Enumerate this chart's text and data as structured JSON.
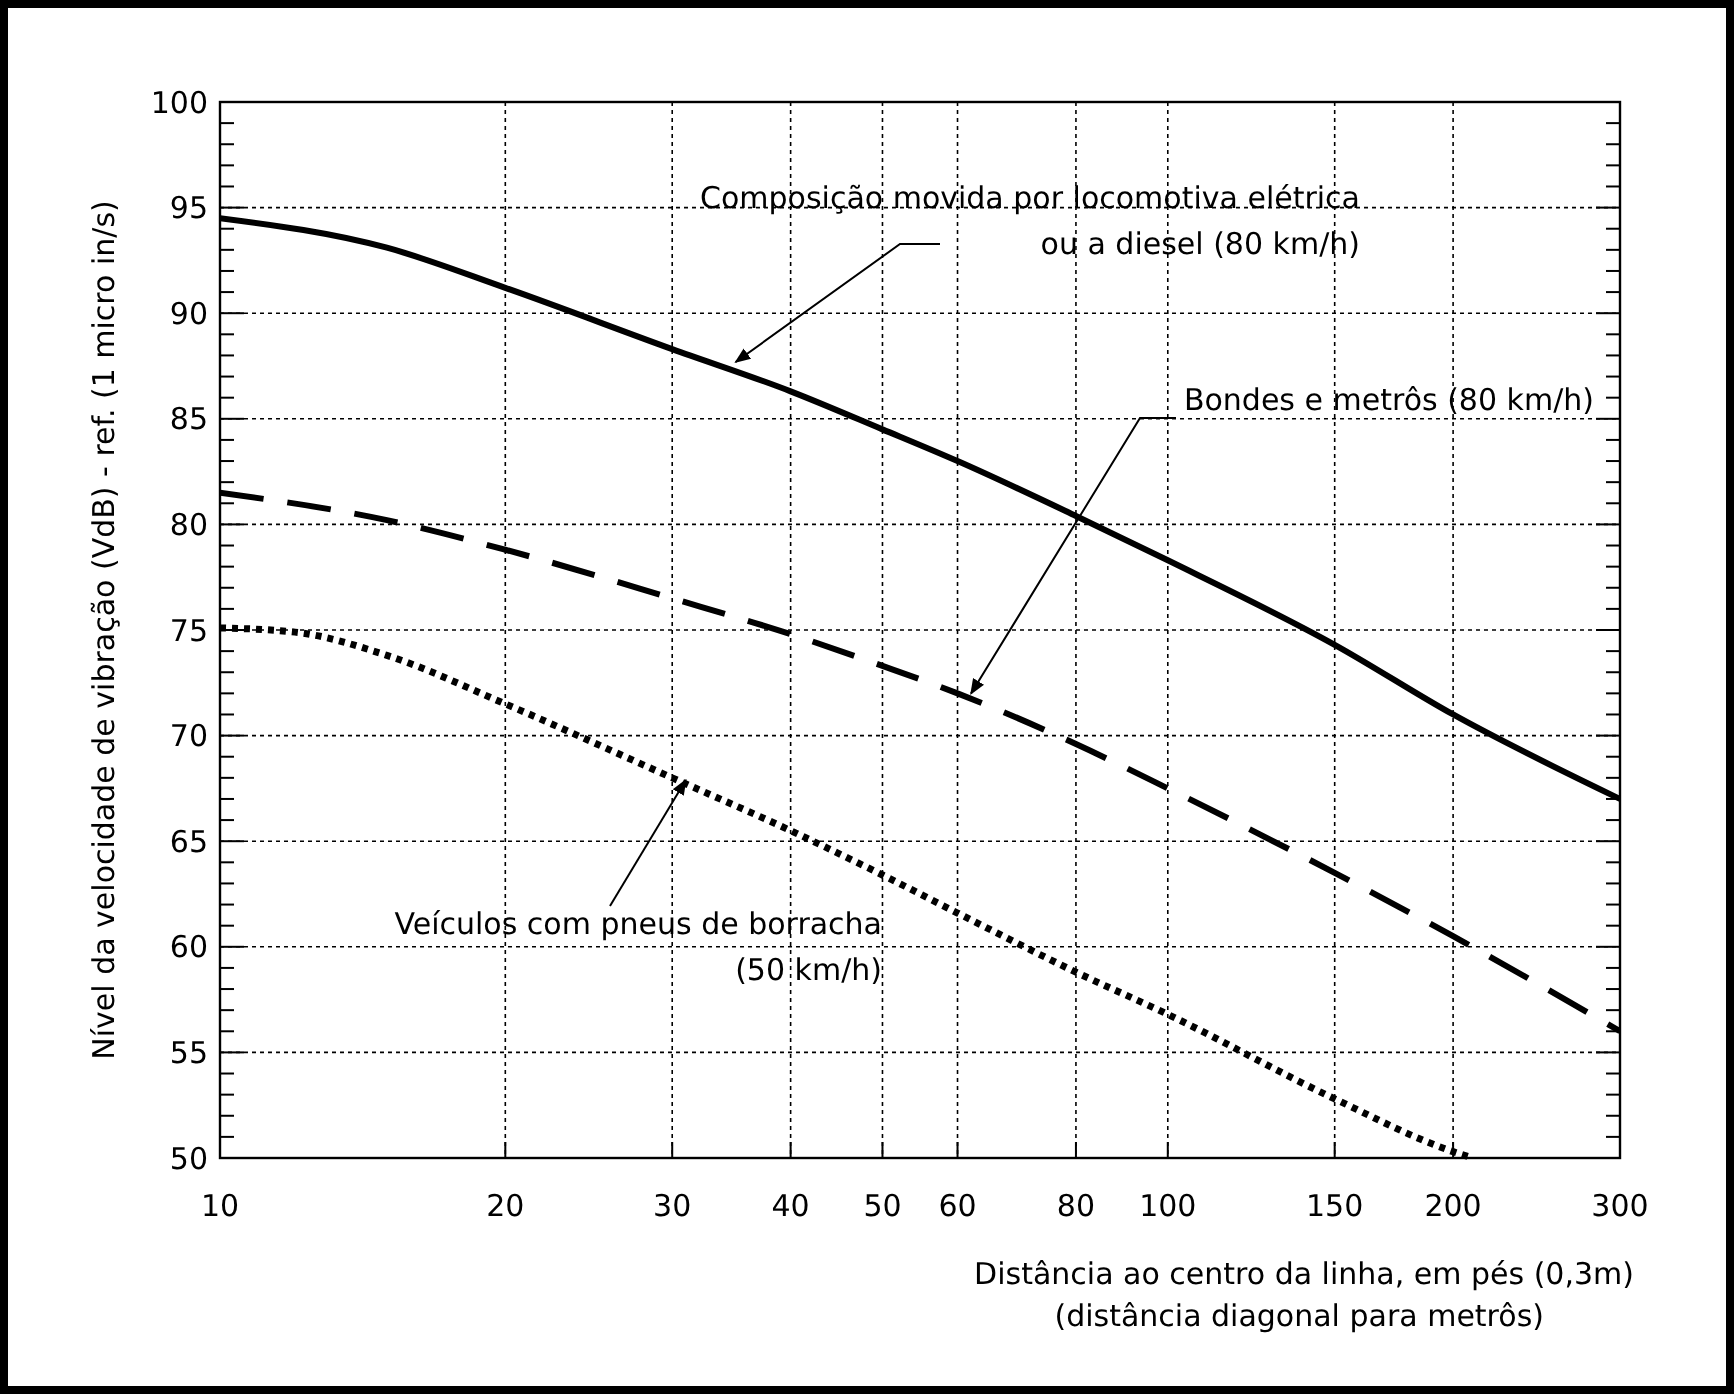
{
  "chart_data": {
    "type": "line",
    "xlabel": "Distância ao centro da linha, em pés (0,3m)\n(distância diagonal para metrôs)",
    "ylabel": "Nível da velocidade de vibração (VdB) - ref. (1 micro in/s)",
    "log": "x",
    "xlim": [
      10,
      300
    ],
    "xticks": [
      10,
      20,
      30,
      40,
      50,
      60,
      80,
      100,
      150,
      200,
      300
    ],
    "ylim": [
      50,
      100
    ],
    "yticks": [
      50,
      55,
      60,
      65,
      70,
      75,
      80,
      85,
      90,
      95,
      100
    ],
    "grid": true,
    "series": [
      {
        "color": "#000000",
        "line_style": "solid",
        "x": [
          10,
          15,
          20,
          30,
          40,
          50,
          60,
          80,
          100,
          150,
          200,
          300
        ],
        "values": [
          94.5,
          93.1,
          91.2,
          88.3,
          86.3,
          84.5,
          83,
          80.4,
          78.3,
          74.3,
          71,
          67
        ]
      },
      {
        "color": "#000000",
        "line_style": "dashed",
        "x": [
          10,
          15,
          20,
          30,
          40,
          50,
          60,
          80,
          100,
          150,
          200,
          300
        ],
        "values": [
          81.5,
          80.2,
          78.8,
          76.5,
          74.8,
          73.3,
          72,
          69.6,
          67.5,
          63.5,
          60.5,
          56
        ]
      },
      {
        "color": "#000000",
        "line_style": "dotted",
        "x": [
          10,
          12,
          15,
          20,
          30,
          40,
          50,
          60,
          80,
          100,
          150,
          200,
          210
        ],
        "values": [
          75.1,
          74.9,
          73.8,
          71.5,
          68,
          65.5,
          63.4,
          61.6,
          58.8,
          56.8,
          52.8,
          50.3,
          50
        ]
      }
    ],
    "annotations": [
      {
        "text": "Composição movida por locomotiva elétrica\nou a diesel (80 km/h)",
        "x": 35,
        "y": 87.5
      },
      {
        "text": "Bondes e metrôs (80 km/h)",
        "x": 62,
        "y": 71.8
      },
      {
        "text": "Veículos com pneus de borracha\n(50 km/h)",
        "x": 31,
        "y": 67.7
      }
    ]
  }
}
